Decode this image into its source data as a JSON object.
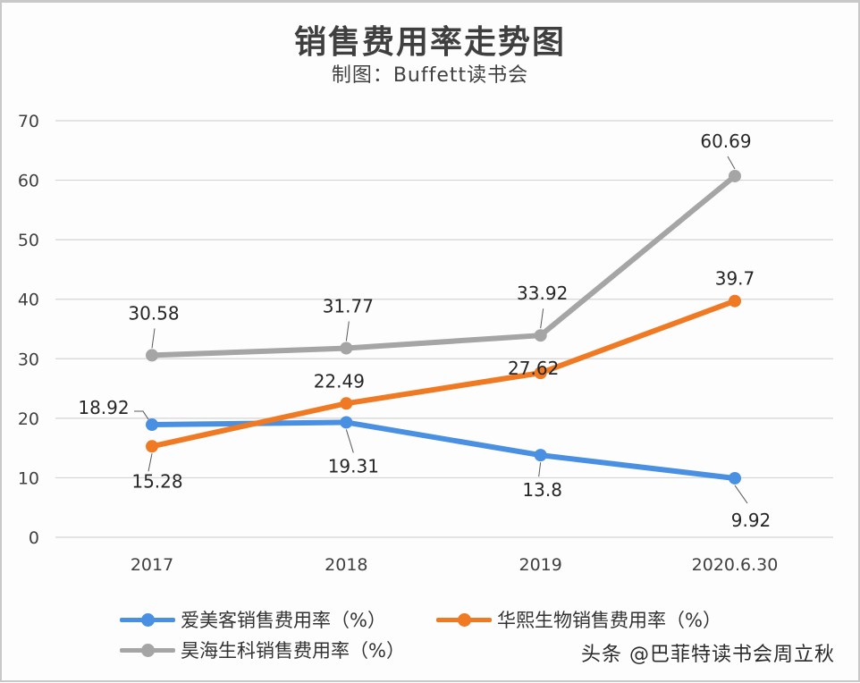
{
  "chart_data": {
    "type": "line",
    "title": "销售费用率走势图",
    "subtitle": "制图：Buffett读书会",
    "categories": [
      "2017",
      "2018",
      "2019",
      "2020.6.30"
    ],
    "xlabel": "",
    "ylabel": "",
    "ylim": [
      0,
      70
    ],
    "yticks": [
      "0",
      "10",
      "20",
      "30",
      "40",
      "50",
      "60",
      "70"
    ],
    "grid": true,
    "legend_position": "bottom",
    "series": [
      {
        "name": "爱美客销售费用率（%）",
        "color": "#4a90e2",
        "values": [
          18.92,
          19.31,
          13.8,
          9.92
        ],
        "labels": [
          "18.92",
          "19.31",
          "13.8",
          "9.92"
        ],
        "label_side": [
          "left",
          "below",
          "below",
          "below-right"
        ]
      },
      {
        "name": "华熙生物销售费用率（%）",
        "color": "#f07a23",
        "values": [
          15.28,
          22.49,
          27.62,
          39.7
        ],
        "labels": [
          "15.28",
          "22.49",
          "27.62",
          "39.7"
        ],
        "label_side": [
          "below",
          "above",
          "on",
          "above"
        ]
      },
      {
        "name": "昊海生科销售费用率（%）",
        "color": "#a5a5a5",
        "values": [
          30.58,
          31.77,
          33.92,
          60.69
        ],
        "labels": [
          "30.58",
          "31.77",
          "33.92",
          "60.69"
        ],
        "label_side": [
          "above",
          "above",
          "above",
          "above"
        ]
      }
    ]
  },
  "watermark": "头条 @巴菲特读书会周立秋"
}
